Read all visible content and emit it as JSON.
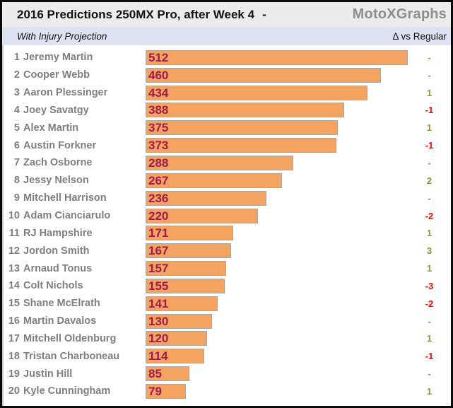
{
  "header": {
    "title": "2016 Predictions 250MX Pro, after Week 4",
    "separator": "-",
    "brand": "MotoXGraphs"
  },
  "subheader": {
    "left": "With Injury Projection",
    "right": "Δ vs Regular"
  },
  "colors": {
    "bar_fill": "#f4a460",
    "bar_border": "#a6a6a6",
    "value_text": "#a01a50",
    "name_text": "#7f7f7f",
    "delta_positive": "#79a22e",
    "delta_negative": "#ff0000",
    "title_bg": "#ececec",
    "subheader_bg": "#dde3f2",
    "brand_text": "#8e8e8e"
  },
  "chart_data": {
    "type": "bar",
    "orientation": "horizontal",
    "title": "2016 Predictions 250MX Pro, after Week 4 - MotoXGraphs",
    "subtitle": "With Injury Projection",
    "delta_column_label": "Δ vs Regular",
    "xlim": [
      0,
      512
    ],
    "grid": false,
    "legend": false,
    "value_labels": "inside-left",
    "riders": [
      {
        "rank": 1,
        "name": "Jeremy Martin",
        "points": 512,
        "delta": "-"
      },
      {
        "rank": 2,
        "name": "Cooper Webb",
        "points": 460,
        "delta": "-"
      },
      {
        "rank": 3,
        "name": "Aaron Plessinger",
        "points": 434,
        "delta": "1"
      },
      {
        "rank": 4,
        "name": "Joey Savatgy",
        "points": 388,
        "delta": "-1"
      },
      {
        "rank": 5,
        "name": "Alex Martin",
        "points": 375,
        "delta": "1"
      },
      {
        "rank": 6,
        "name": "Austin Forkner",
        "points": 373,
        "delta": "-1"
      },
      {
        "rank": 7,
        "name": "Zach Osborne",
        "points": 288,
        "delta": "-"
      },
      {
        "rank": 8,
        "name": "Jessy Nelson",
        "points": 267,
        "delta": "2"
      },
      {
        "rank": 9,
        "name": "Mitchell Harrison",
        "points": 236,
        "delta": "-"
      },
      {
        "rank": 10,
        "name": "Adam Cianciarulo",
        "points": 220,
        "delta": "-2"
      },
      {
        "rank": 11,
        "name": "RJ Hampshire",
        "points": 171,
        "delta": "1"
      },
      {
        "rank": 12,
        "name": "Jordon Smith",
        "points": 167,
        "delta": "3"
      },
      {
        "rank": 13,
        "name": "Arnaud Tonus",
        "points": 157,
        "delta": "1"
      },
      {
        "rank": 14,
        "name": "Colt Nichols",
        "points": 155,
        "delta": "-3"
      },
      {
        "rank": 15,
        "name": "Shane McElrath",
        "points": 141,
        "delta": "-2"
      },
      {
        "rank": 16,
        "name": "Martin Davalos",
        "points": 130,
        "delta": "-"
      },
      {
        "rank": 17,
        "name": "Mitchell Oldenburg",
        "points": 120,
        "delta": "1"
      },
      {
        "rank": 18,
        "name": "Tristan Charboneau",
        "points": 114,
        "delta": "-1"
      },
      {
        "rank": 19,
        "name": "Justin Hill",
        "points": 85,
        "delta": "-"
      },
      {
        "rank": 20,
        "name": "Kyle Cunningham",
        "points": 79,
        "delta": "1"
      }
    ]
  }
}
